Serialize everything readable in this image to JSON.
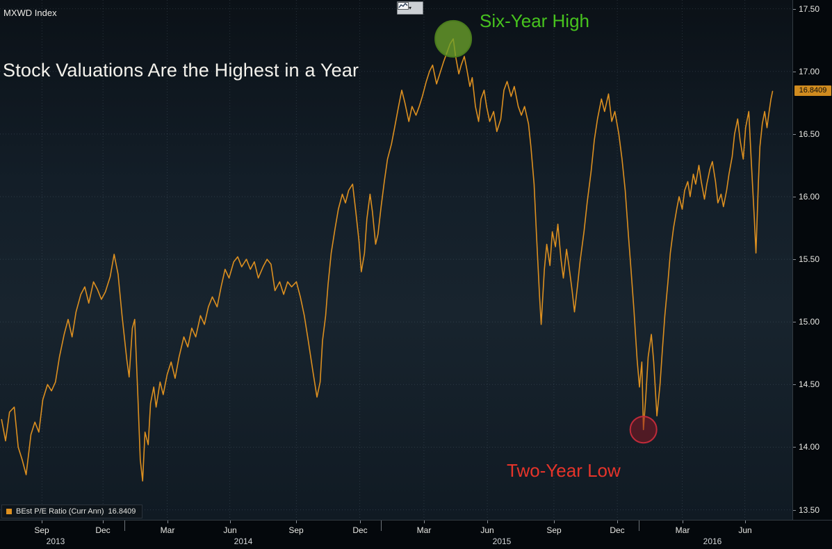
{
  "app": {
    "security_label": "MXWD Index"
  },
  "toolbar": {
    "caret": "▾",
    "chart_type_icon": "line-chart-glyph"
  },
  "legend": {
    "swatch_color": "#dd9020"
  },
  "chart_data": {
    "type": "line",
    "title": "Stock Valuations Are the Highest in a Year",
    "series_name": "BEst P/E Ratio (Curr Ann)",
    "last_value": 16.8409,
    "last_label": "16.8409",
    "line_color": "#dd9020",
    "x_range": [
      "Jul 2013",
      "Aug 2016"
    ],
    "ylim": [
      13.42,
      17.57
    ],
    "grid": true,
    "grid_style": "dotted",
    "legend_position": "bottom-left",
    "y_ticks": [
      17.5,
      17.0,
      16.5,
      16.0,
      15.5,
      15.0,
      14.5,
      14.0,
      13.5
    ],
    "x_ticks_months": [
      {
        "label": "Sep",
        "t": 0.053
      },
      {
        "label": "Dec",
        "t": 0.13
      },
      {
        "label": "Mar",
        "t": 0.211
      },
      {
        "label": "Jun",
        "t": 0.29
      },
      {
        "label": "Sep",
        "t": 0.374
      },
      {
        "label": "Dec",
        "t": 0.454
      },
      {
        "label": "Mar",
        "t": 0.535
      },
      {
        "label": "Jun",
        "t": 0.615
      },
      {
        "label": "Sep",
        "t": 0.699
      },
      {
        "label": "Dec",
        "t": 0.779
      },
      {
        "label": "Mar",
        "t": 0.861
      },
      {
        "label": "Jun",
        "t": 0.94
      }
    ],
    "x_ticks_years": [
      {
        "label": "2013",
        "t": 0.07
      },
      {
        "label": "2014",
        "t": 0.307
      },
      {
        "label": "2015",
        "t": 0.633
      },
      {
        "label": "2016",
        "t": 0.899
      }
    ],
    "year_dividers": [
      0.157,
      0.481,
      0.806
    ],
    "annotations": [
      {
        "id": "six-year-high",
        "label": "Six-Year High",
        "t": 0.572,
        "value": 17.26,
        "radius": 26,
        "fill": "rgba(108,162,42,0.78)",
        "stroke": "#4a7b1d",
        "label_color": "#47c31e"
      },
      {
        "id": "two-year-low",
        "label": "Two-Year Low",
        "t": 0.812,
        "value": 14.14,
        "radius": 19,
        "fill": "rgba(141,22,34,0.50)",
        "stroke": "#c02b3a",
        "label_color": "#e6342a"
      }
    ],
    "points": [
      [
        0.002,
        14.22
      ],
      [
        0.007,
        14.05
      ],
      [
        0.012,
        14.28
      ],
      [
        0.018,
        14.32
      ],
      [
        0.023,
        14.0
      ],
      [
        0.028,
        13.9
      ],
      [
        0.033,
        13.78
      ],
      [
        0.039,
        14.1
      ],
      [
        0.044,
        14.2
      ],
      [
        0.049,
        14.12
      ],
      [
        0.054,
        14.38
      ],
      [
        0.06,
        14.5
      ],
      [
        0.065,
        14.45
      ],
      [
        0.07,
        14.52
      ],
      [
        0.075,
        14.72
      ],
      [
        0.081,
        14.9
      ],
      [
        0.086,
        15.02
      ],
      [
        0.091,
        14.88
      ],
      [
        0.096,
        15.08
      ],
      [
        0.102,
        15.22
      ],
      [
        0.107,
        15.28
      ],
      [
        0.112,
        15.15
      ],
      [
        0.118,
        15.32
      ],
      [
        0.123,
        15.26
      ],
      [
        0.128,
        15.18
      ],
      [
        0.133,
        15.24
      ],
      [
        0.139,
        15.36
      ],
      [
        0.144,
        15.54
      ],
      [
        0.149,
        15.38
      ],
      [
        0.154,
        15.05
      ],
      [
        0.16,
        14.7
      ],
      [
        0.163,
        14.56
      ],
      [
        0.167,
        14.95
      ],
      [
        0.17,
        15.02
      ],
      [
        0.174,
        14.4
      ],
      [
        0.177,
        13.9
      ],
      [
        0.18,
        13.73
      ],
      [
        0.183,
        14.12
      ],
      [
        0.187,
        14.02
      ],
      [
        0.19,
        14.35
      ],
      [
        0.194,
        14.48
      ],
      [
        0.197,
        14.32
      ],
      [
        0.202,
        14.52
      ],
      [
        0.206,
        14.42
      ],
      [
        0.211,
        14.58
      ],
      [
        0.216,
        14.68
      ],
      [
        0.221,
        14.55
      ],
      [
        0.226,
        14.72
      ],
      [
        0.232,
        14.88
      ],
      [
        0.237,
        14.8
      ],
      [
        0.242,
        14.95
      ],
      [
        0.247,
        14.88
      ],
      [
        0.253,
        15.05
      ],
      [
        0.258,
        14.98
      ],
      [
        0.263,
        15.12
      ],
      [
        0.268,
        15.2
      ],
      [
        0.274,
        15.12
      ],
      [
        0.279,
        15.28
      ],
      [
        0.284,
        15.42
      ],
      [
        0.289,
        15.35
      ],
      [
        0.295,
        15.48
      ],
      [
        0.3,
        15.52
      ],
      [
        0.305,
        15.44
      ],
      [
        0.311,
        15.5
      ],
      [
        0.316,
        15.42
      ],
      [
        0.321,
        15.48
      ],
      [
        0.326,
        15.35
      ],
      [
        0.332,
        15.44
      ],
      [
        0.337,
        15.5
      ],
      [
        0.342,
        15.46
      ],
      [
        0.347,
        15.25
      ],
      [
        0.353,
        15.32
      ],
      [
        0.358,
        15.22
      ],
      [
        0.363,
        15.32
      ],
      [
        0.368,
        15.28
      ],
      [
        0.374,
        15.32
      ],
      [
        0.379,
        15.2
      ],
      [
        0.384,
        15.05
      ],
      [
        0.389,
        14.85
      ],
      [
        0.395,
        14.6
      ],
      [
        0.4,
        14.4
      ],
      [
        0.404,
        14.52
      ],
      [
        0.407,
        14.85
      ],
      [
        0.411,
        15.05
      ],
      [
        0.414,
        15.3
      ],
      [
        0.418,
        15.55
      ],
      [
        0.423,
        15.75
      ],
      [
        0.427,
        15.9
      ],
      [
        0.432,
        16.02
      ],
      [
        0.436,
        15.95
      ],
      [
        0.44,
        16.05
      ],
      [
        0.445,
        16.1
      ],
      [
        0.449,
        15.88
      ],
      [
        0.453,
        15.65
      ],
      [
        0.456,
        15.4
      ],
      [
        0.46,
        15.55
      ],
      [
        0.463,
        15.82
      ],
      [
        0.467,
        16.02
      ],
      [
        0.47,
        15.88
      ],
      [
        0.474,
        15.62
      ],
      [
        0.477,
        15.7
      ],
      [
        0.481,
        15.92
      ],
      [
        0.485,
        16.12
      ],
      [
        0.489,
        16.3
      ],
      [
        0.494,
        16.42
      ],
      [
        0.498,
        16.55
      ],
      [
        0.503,
        16.72
      ],
      [
        0.507,
        16.85
      ],
      [
        0.511,
        16.75
      ],
      [
        0.516,
        16.6
      ],
      [
        0.52,
        16.72
      ],
      [
        0.525,
        16.65
      ],
      [
        0.529,
        16.72
      ],
      [
        0.533,
        16.8
      ],
      [
        0.538,
        16.92
      ],
      [
        0.542,
        17.0
      ],
      [
        0.546,
        17.05
      ],
      [
        0.551,
        16.9
      ],
      [
        0.555,
        16.98
      ],
      [
        0.56,
        17.08
      ],
      [
        0.564,
        17.15
      ],
      [
        0.568,
        17.22
      ],
      [
        0.572,
        17.26
      ],
      [
        0.575,
        17.12
      ],
      [
        0.579,
        16.98
      ],
      [
        0.582,
        17.05
      ],
      [
        0.586,
        17.12
      ],
      [
        0.589,
        17.02
      ],
      [
        0.593,
        16.88
      ],
      [
        0.596,
        16.95
      ],
      [
        0.6,
        16.72
      ],
      [
        0.604,
        16.6
      ],
      [
        0.607,
        16.78
      ],
      [
        0.611,
        16.85
      ],
      [
        0.614,
        16.72
      ],
      [
        0.618,
        16.6
      ],
      [
        0.623,
        16.68
      ],
      [
        0.627,
        16.52
      ],
      [
        0.632,
        16.62
      ],
      [
        0.636,
        16.85
      ],
      [
        0.64,
        16.92
      ],
      [
        0.645,
        16.8
      ],
      [
        0.649,
        16.88
      ],
      [
        0.654,
        16.72
      ],
      [
        0.658,
        16.65
      ],
      [
        0.662,
        16.72
      ],
      [
        0.667,
        16.58
      ],
      [
        0.67,
        16.4
      ],
      [
        0.674,
        16.1
      ],
      [
        0.677,
        15.7
      ],
      [
        0.681,
        15.2
      ],
      [
        0.683,
        14.98
      ],
      [
        0.687,
        15.42
      ],
      [
        0.69,
        15.62
      ],
      [
        0.694,
        15.45
      ],
      [
        0.697,
        15.72
      ],
      [
        0.701,
        15.6
      ],
      [
        0.704,
        15.78
      ],
      [
        0.708,
        15.5
      ],
      [
        0.711,
        15.35
      ],
      [
        0.715,
        15.58
      ],
      [
        0.718,
        15.45
      ],
      [
        0.722,
        15.25
      ],
      [
        0.725,
        15.08
      ],
      [
        0.729,
        15.3
      ],
      [
        0.732,
        15.48
      ],
      [
        0.737,
        15.72
      ],
      [
        0.741,
        15.95
      ],
      [
        0.746,
        16.2
      ],
      [
        0.75,
        16.45
      ],
      [
        0.754,
        16.62
      ],
      [
        0.759,
        16.78
      ],
      [
        0.763,
        16.68
      ],
      [
        0.768,
        16.82
      ],
      [
        0.772,
        16.6
      ],
      [
        0.776,
        16.68
      ],
      [
        0.781,
        16.5
      ],
      [
        0.785,
        16.3
      ],
      [
        0.789,
        16.05
      ],
      [
        0.793,
        15.7
      ],
      [
        0.796,
        15.45
      ],
      [
        0.8,
        15.1
      ],
      [
        0.804,
        14.7
      ],
      [
        0.807,
        14.48
      ],
      [
        0.81,
        14.68
      ],
      [
        0.812,
        14.14
      ],
      [
        0.815,
        14.4
      ],
      [
        0.818,
        14.72
      ],
      [
        0.822,
        14.9
      ],
      [
        0.825,
        14.68
      ],
      [
        0.829,
        14.25
      ],
      [
        0.833,
        14.5
      ],
      [
        0.836,
        14.78
      ],
      [
        0.839,
        15.05
      ],
      [
        0.843,
        15.32
      ],
      [
        0.846,
        15.55
      ],
      [
        0.85,
        15.75
      ],
      [
        0.854,
        15.9
      ],
      [
        0.857,
        16.0
      ],
      [
        0.861,
        15.9
      ],
      [
        0.864,
        16.05
      ],
      [
        0.868,
        16.12
      ],
      [
        0.871,
        16.0
      ],
      [
        0.875,
        16.18
      ],
      [
        0.878,
        16.1
      ],
      [
        0.882,
        16.25
      ],
      [
        0.885,
        16.12
      ],
      [
        0.889,
        15.98
      ],
      [
        0.892,
        16.1
      ],
      [
        0.896,
        16.22
      ],
      [
        0.899,
        16.28
      ],
      [
        0.903,
        16.12
      ],
      [
        0.906,
        15.95
      ],
      [
        0.91,
        16.02
      ],
      [
        0.913,
        15.92
      ],
      [
        0.917,
        16.05
      ],
      [
        0.92,
        16.18
      ],
      [
        0.924,
        16.32
      ],
      [
        0.927,
        16.5
      ],
      [
        0.931,
        16.62
      ],
      [
        0.934,
        16.45
      ],
      [
        0.938,
        16.3
      ],
      [
        0.941,
        16.55
      ],
      [
        0.945,
        16.68
      ],
      [
        0.948,
        16.3
      ],
      [
        0.952,
        15.82
      ],
      [
        0.954,
        15.55
      ],
      [
        0.957,
        16.1
      ],
      [
        0.959,
        16.4
      ],
      [
        0.962,
        16.58
      ],
      [
        0.965,
        16.68
      ],
      [
        0.968,
        16.55
      ],
      [
        0.97,
        16.65
      ],
      [
        0.973,
        16.78
      ],
      [
        0.975,
        16.8409
      ]
    ]
  }
}
